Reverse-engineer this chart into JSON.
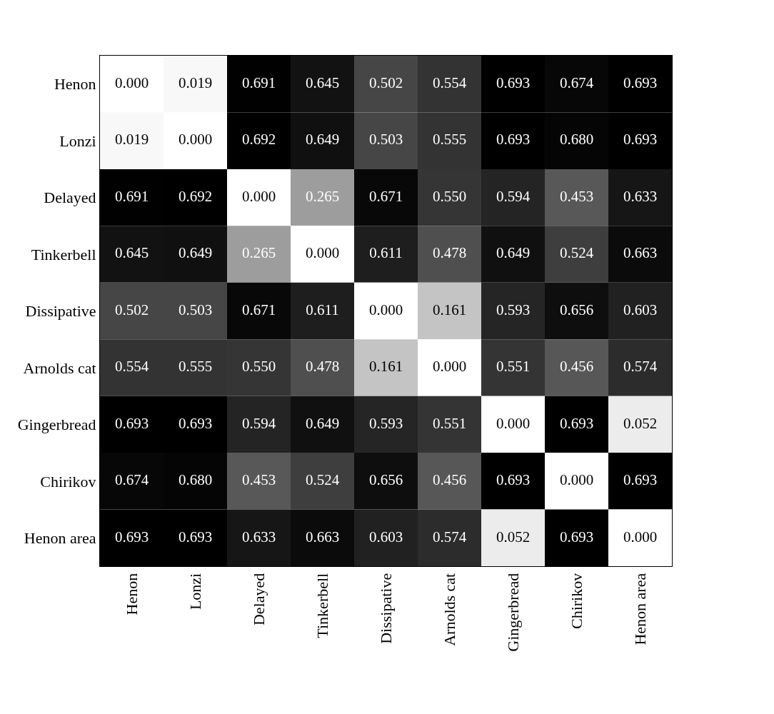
{
  "chart_data": {
    "type": "heatmap",
    "categories": [
      "Henon",
      "Lonzi",
      "Delayed",
      "Tinkerbell",
      "Dissipative",
      "Arnolds cat",
      "Gingerbread",
      "Chirikov",
      "Henon area"
    ],
    "y_categories": [
      "Henon",
      "Lonzi",
      "Delayed",
      "Tinkerbell",
      "Dissipative",
      "Arnolds cat",
      "Gingerbread",
      "Chirikov",
      "Henon area"
    ],
    "cells": [
      [
        0.0,
        0.019,
        0.691,
        0.645,
        0.502,
        0.554,
        0.693,
        0.674,
        0.693
      ],
      [
        0.019,
        0.0,
        0.692,
        0.649,
        0.503,
        0.555,
        0.693,
        0.68,
        0.693
      ],
      [
        0.691,
        0.692,
        0.0,
        0.265,
        0.671,
        0.55,
        0.594,
        0.453,
        0.633
      ],
      [
        0.645,
        0.649,
        0.265,
        0.0,
        0.611,
        0.478,
        0.649,
        0.524,
        0.663
      ],
      [
        0.502,
        0.503,
        0.671,
        0.611,
        0.0,
        0.161,
        0.593,
        0.656,
        0.603
      ],
      [
        0.554,
        0.555,
        0.55,
        0.478,
        0.161,
        0.0,
        0.551,
        0.456,
        0.574
      ],
      [
        0.693,
        0.693,
        0.594,
        0.649,
        0.593,
        0.551,
        0.0,
        0.693,
        0.052
      ],
      [
        0.674,
        0.68,
        0.453,
        0.524,
        0.656,
        0.456,
        0.693,
        0.0,
        0.693
      ],
      [
        0.693,
        0.693,
        0.633,
        0.663,
        0.603,
        0.574,
        0.052,
        0.693,
        0.0
      ]
    ],
    "cell_labels": [
      [
        "0.000",
        "0.019",
        "0.691",
        "0.645",
        "0.502",
        "0.554",
        "0.693",
        "0.674",
        "0.693"
      ],
      [
        "0.019",
        "0.000",
        "0.692",
        "0.649",
        "0.503",
        "0.555",
        "0.693",
        "0.680",
        "0.693"
      ],
      [
        "0.691",
        "0.692",
        "0.000",
        "0.265",
        "0.671",
        "0.550",
        "0.594",
        "0.453",
        "0.633"
      ],
      [
        "0.645",
        "0.649",
        "0.265",
        "0.000",
        "0.611",
        "0.478",
        "0.649",
        "0.524",
        "0.663"
      ],
      [
        "0.502",
        "0.503",
        "0.671",
        "0.611",
        "0.000",
        "0.161",
        "0.593",
        "0.656",
        "0.603"
      ],
      [
        "0.554",
        "0.555",
        "0.550",
        "0.478",
        "0.161",
        "0.000",
        "0.551",
        "0.456",
        "0.574"
      ],
      [
        "0.693",
        "0.693",
        "0.594",
        "0.649",
        "0.593",
        "0.551",
        "0.000",
        "0.693",
        "0.052"
      ],
      [
        "0.674",
        "0.680",
        "0.453",
        "0.524",
        "0.656",
        "0.456",
        "0.693",
        "0.000",
        "0.693"
      ],
      [
        "0.693",
        "0.693",
        "0.633",
        "0.663",
        "0.603",
        "0.574",
        "0.052",
        "0.693",
        "0.000"
      ]
    ]
  }
}
